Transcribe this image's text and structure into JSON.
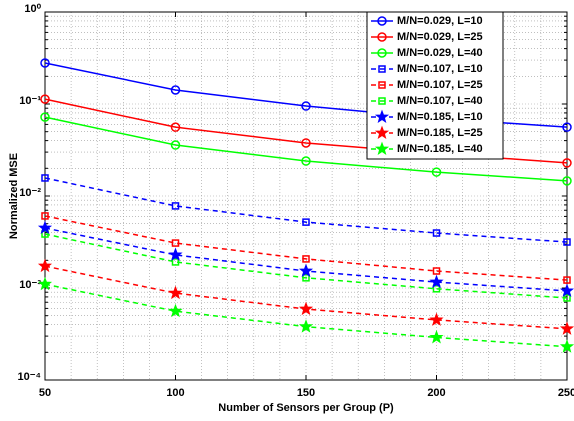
{
  "chart_data": {
    "type": "line",
    "x_label": "Number of Sensors per Group (P)",
    "y_label": "Normalized MSE",
    "x": [
      50,
      100,
      150,
      200,
      250
    ],
    "xlim": [
      50,
      250
    ],
    "xticks": [
      50,
      100,
      150,
      200,
      250
    ],
    "ylim": [
      0.0001,
      1
    ],
    "yticks": [
      {
        "value": 0.0001,
        "label": "10⁻⁴"
      },
      {
        "value": 0.001,
        "label": "10⁻³"
      },
      {
        "value": 0.01,
        "label": "10⁻²"
      },
      {
        "value": 0.1,
        "label": "10⁻¹"
      },
      {
        "value": 1,
        "label": "10⁰"
      }
    ],
    "y_scale": "log",
    "grid": true,
    "minor_grid": true,
    "legend_position": "upper right",
    "series": [
      {
        "name": "M/N=0.029, L=10",
        "color": "#0000ff",
        "marker": "circle",
        "dash": false,
        "values": [
          0.279,
          0.142,
          0.095,
          0.07,
          0.056
        ]
      },
      {
        "name": "M/N=0.029, L=25",
        "color": "#ff0000",
        "marker": "circle",
        "dash": false,
        "values": [
          0.113,
          0.056,
          0.0377,
          0.029,
          0.0229
        ]
      },
      {
        "name": "M/N=0.029, L=40",
        "color": "#00ff00",
        "marker": "circle",
        "dash": false,
        "values": [
          0.072,
          0.0358,
          0.024,
          0.0182,
          0.0146
        ]
      },
      {
        "name": "M/N=0.107, L=10",
        "color": "#0000ff",
        "marker": "square",
        "dash": true,
        "values": [
          0.0157,
          0.0078,
          0.0052,
          0.00396,
          0.00316
        ]
      },
      {
        "name": "M/N=0.107, L=25",
        "color": "#ff0000",
        "marker": "square",
        "dash": true,
        "values": [
          0.00607,
          0.00308,
          0.00207,
          0.00153,
          0.00122
        ]
      },
      {
        "name": "M/N=0.107, L=40",
        "color": "#00ff00",
        "marker": "square",
        "dash": true,
        "values": [
          0.00386,
          0.00192,
          0.00129,
          0.00098,
          0.00078
        ]
      },
      {
        "name": "M/N=0.185, L=10",
        "color": "#0000ff",
        "marker": "star",
        "dash": true,
        "values": [
          0.00449,
          0.00229,
          0.00153,
          0.00116,
          0.00093
        ]
      },
      {
        "name": "M/N=0.185, L=25",
        "color": "#ff0000",
        "marker": "star",
        "dash": true,
        "values": [
          0.00173,
          0.00088,
          0.00059,
          0.00045,
          0.00036
        ]
      },
      {
        "name": "M/N=0.185, L=40",
        "color": "#00ff00",
        "marker": "star",
        "dash": true,
        "values": [
          0.0011,
          0.00056,
          0.00038,
          0.00029,
          0.00023
        ]
      }
    ]
  }
}
